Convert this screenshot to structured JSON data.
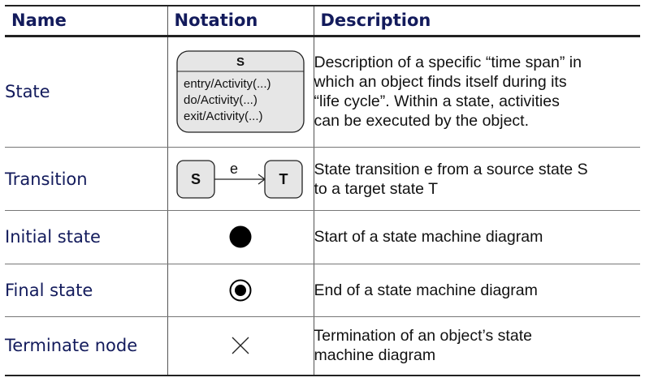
{
  "headers": {
    "name": "Name",
    "notation": "Notation",
    "description": "Description"
  },
  "rows": [
    {
      "name": "State",
      "notation": {
        "state_name": "S",
        "activities": [
          "entry/Activity(...)",
          "do/Activity(...)",
          "exit/Activity(...)"
        ]
      },
      "description": [
        "Description of a specific “time span” in",
        "which an object finds itself during its",
        "“life cycle”. Within a state, activities",
        "can be executed by the object."
      ]
    },
    {
      "name": "Transition",
      "notation": {
        "source": "S",
        "event": "e",
        "target": "T"
      },
      "description": [
        "State transition e from a source state S",
        "to a target state T"
      ]
    },
    {
      "name": "Initial state",
      "description": [
        "Start of a state machine diagram"
      ]
    },
    {
      "name": "Final state",
      "description": [
        "End of a state machine diagram"
      ]
    },
    {
      "name": "Terminate node",
      "description": [
        "Termination of an object’s state",
        "machine diagram"
      ]
    }
  ],
  "colors": {
    "header_text": "#131b5c",
    "name_text": "#131b5c",
    "state_fill": "#e6e6e6",
    "state_stroke": "#222222"
  }
}
